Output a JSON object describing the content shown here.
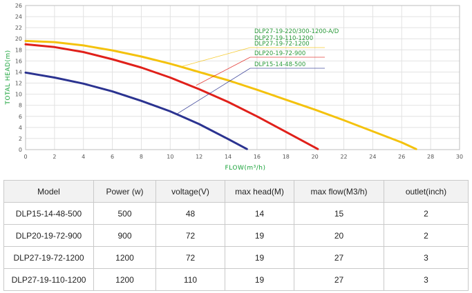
{
  "chart_data": {
    "type": "line",
    "title": "",
    "xlabel": "FLOW(m³/h)",
    "ylabel": "TOTAL HEAD(m)",
    "xlim": [
      0,
      30
    ],
    "ylim": [
      0,
      26
    ],
    "xticks": [
      0,
      2,
      4,
      6,
      8,
      10,
      12,
      14,
      16,
      18,
      20,
      22,
      24,
      26,
      28,
      30
    ],
    "yticks": [
      0,
      2,
      4,
      6,
      8,
      10,
      12,
      14,
      16,
      18,
      20,
      22,
      24,
      26
    ],
    "grid": true,
    "series": [
      {
        "name": "DLP27-19-220/300-1200-A/D",
        "color": "#f4c20d",
        "x": [
          0,
          2,
          4,
          6,
          8,
          10,
          12,
          14,
          16,
          18,
          20,
          22,
          24,
          26,
          27
        ],
        "y": [
          19.6,
          19.4,
          18.8,
          17.9,
          16.8,
          15.5,
          14.0,
          12.5,
          10.8,
          9.0,
          7.2,
          5.3,
          3.3,
          1.3,
          0.1
        ]
      },
      {
        "name": "DLP20-19-72-900",
        "color": "#e0201a",
        "x": [
          0,
          2,
          4,
          6,
          8,
          10,
          12,
          14,
          16,
          18,
          20.2
        ],
        "y": [
          19.0,
          18.5,
          17.6,
          16.3,
          14.8,
          13.0,
          10.9,
          8.6,
          6.0,
          3.2,
          0.1
        ]
      },
      {
        "name": "DLP15-14-48-500",
        "color": "#2b3390",
        "x": [
          0,
          2,
          4,
          6,
          8,
          10,
          12,
          14,
          15.3
        ],
        "y": [
          13.9,
          13.0,
          11.9,
          10.5,
          8.8,
          6.9,
          4.6,
          1.9,
          0.1
        ]
      }
    ],
    "legend": [
      {
        "label": "DLP27-19-220/300-1200-A/D",
        "color": "#f4c20d",
        "point": [
          10.8,
          15.0
        ]
      },
      {
        "label": "DLP27-19-110-1200",
        "color": "#f4c20d",
        "point": [
          10.8,
          15.0
        ]
      },
      {
        "label": "DLP27-19-72-1200",
        "color": "#f4c20d",
        "point": [
          10.8,
          15.0
        ]
      },
      {
        "label": "DLP20-19-72-900",
        "color": "#e0201a",
        "point": [
          11.8,
          11.6
        ]
      },
      {
        "label": "DLP15-14-48-500",
        "color": "#2b3390",
        "point": [
          10.5,
          6.5
        ]
      }
    ]
  },
  "table": {
    "headers": [
      "Model",
      "Power (w)",
      "voltage(V)",
      "max head(M)",
      "max flow(M3/h)",
      "outlet(inch)"
    ],
    "rows": [
      [
        "DLP15-14-48-500",
        "500",
        "48",
        "14",
        "15",
        "2"
      ],
      [
        "DLP20-19-72-900",
        "900",
        "72",
        "19",
        "20",
        "2"
      ],
      [
        "DLP27-19-72-1200",
        "1200",
        "72",
        "19",
        "27",
        "3"
      ],
      [
        "DLP27-19-110-1200",
        "1200",
        "110",
        "19",
        "27",
        "3"
      ]
    ]
  }
}
